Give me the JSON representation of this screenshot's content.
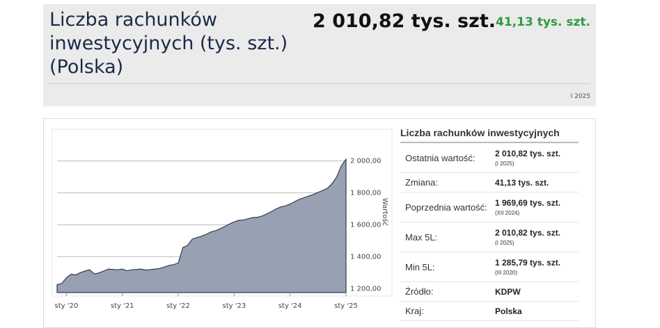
{
  "header": {
    "title": "Liczba rachunków inwestycyjnych (tys. szt.) (Polska)",
    "value": "2 010,82 tys. szt.",
    "change": "41,13 tys. szt.",
    "period": "I 2025"
  },
  "chart_data": {
    "type": "area",
    "color": "#97a1b1",
    "line_color": "#2e3c52",
    "y_label": "Wartość",
    "grid": true,
    "categories": [
      null,
      null,
      "sty '20",
      null,
      null,
      null,
      null,
      null,
      null,
      null,
      null,
      null,
      null,
      null,
      "sty '21",
      null,
      null,
      null,
      null,
      null,
      null,
      null,
      null,
      null,
      null,
      null,
      "sty '22",
      null,
      null,
      null,
      null,
      null,
      null,
      null,
      null,
      null,
      null,
      null,
      "sty '23",
      null,
      null,
      null,
      null,
      null,
      null,
      null,
      null,
      null,
      null,
      null,
      "sty '24",
      null,
      null,
      null,
      null,
      null,
      null,
      null,
      null,
      null,
      null,
      null,
      "sty '25"
    ],
    "values": [
      1225,
      1232,
      1268,
      1290,
      1285.79,
      1300,
      1310,
      1318,
      1292,
      1298,
      1310,
      1322,
      1320,
      1318,
      1322,
      1312,
      1318,
      1320,
      1322,
      1316,
      1319,
      1322,
      1326,
      1335,
      1345,
      1350,
      1360,
      1458,
      1470,
      1510,
      1520,
      1528,
      1540,
      1555,
      1563,
      1575,
      1590,
      1605,
      1618,
      1628,
      1630,
      1638,
      1645,
      1647,
      1655,
      1668,
      1683,
      1700,
      1712,
      1718,
      1730,
      1745,
      1760,
      1770,
      1780,
      1790,
      1803,
      1815,
      1828,
      1858,
      1900,
      1969.69,
      2010.82
    ],
    "ylim": [
      1175,
      2190
    ],
    "yticks": [
      {
        "value": 1200,
        "label": "1 200,00"
      },
      {
        "value": 1400,
        "label": "1 400,00"
      },
      {
        "value": 1600,
        "label": "1 600,00"
      },
      {
        "value": 1800,
        "label": "1 800,00"
      },
      {
        "value": 2000,
        "label": "2 000,00"
      }
    ]
  },
  "table": {
    "title": "Liczba rachunków inwestycyjnych",
    "rows": [
      {
        "label": "Ostatnia wartość:",
        "value": "2 010,82 tys. szt.",
        "note": "(I 2025)"
      },
      {
        "label": "Zmiana:",
        "value": "41,13 tys. szt."
      },
      {
        "label": "Poprzednia wartość:",
        "value": "1 969,69 tys. szt.",
        "note": "(XII 2024)"
      },
      {
        "label": "Max 5L:",
        "value": "2 010,82 tys. szt.",
        "note": "(I 2025)"
      },
      {
        "label": "Min 5L:",
        "value": "1 285,79 tys. szt.",
        "note": "(III 2020)"
      },
      {
        "label": "Źródło:",
        "value": "KDPW"
      },
      {
        "label": "Kraj:",
        "value": "Polska"
      }
    ]
  }
}
